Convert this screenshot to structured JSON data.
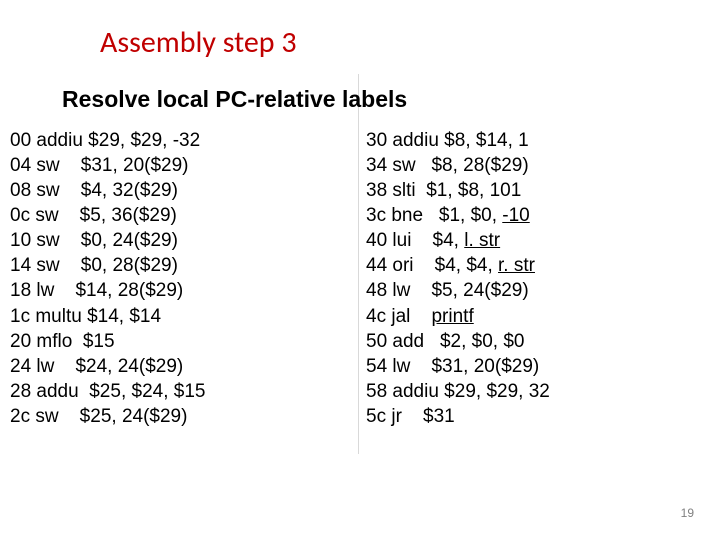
{
  "title": "Assembly step 3",
  "subtitle": "Resolve local PC-relative labels",
  "left_col": [
    {
      "addr": "00",
      "instr": "addiu $29, $29, -32"
    },
    {
      "addr": "04",
      "instr": "sw    $31, 20($29)"
    },
    {
      "addr": "08",
      "instr": "sw    $4, 32($29)"
    },
    {
      "addr": "0c",
      "instr": "sw    $5, 36($29)"
    },
    {
      "addr": "10",
      "instr": "sw    $0, 24($29)"
    },
    {
      "addr": "14",
      "instr": "sw    $0, 28($29)"
    },
    {
      "addr": "18",
      "instr": "lw    $14, 28($29)"
    },
    {
      "addr": "1c",
      "instr": "multu $14, $14"
    },
    {
      "addr": "20",
      "instr": "mflo  $15"
    },
    {
      "addr": "24",
      "instr": "lw    $24, 24($29)"
    },
    {
      "addr": "28",
      "instr": "addu  $25, $24, $15"
    },
    {
      "addr": "2c",
      "instr": "sw    $25, 24($29)"
    }
  ],
  "right_col": [
    {
      "addr": "30",
      "instr": "addiu $8, $14, 1"
    },
    {
      "addr": "34",
      "instr": "sw   $8, 28($29)"
    },
    {
      "addr": "38",
      "instr": "slti  $1, $8, 101"
    },
    {
      "addr": "3c",
      "pre": "bne   $1, $0, ",
      "u": "-10"
    },
    {
      "addr": "40",
      "pre": "lui    $4, ",
      "u": "l. str"
    },
    {
      "addr": "44",
      "pre": "ori    $4, $4, ",
      "u": "r. str"
    },
    {
      "addr": "48",
      "instr": "lw    $5, 24($29)"
    },
    {
      "addr": "4c",
      "pre": "jal    ",
      "u": "printf"
    },
    {
      "addr": "50",
      "instr": "add   $2, $0, $0"
    },
    {
      "addr": "54",
      "instr": "lw    $31, 20($29)"
    },
    {
      "addr": "58",
      "instr": "addiu $29, $29, 32"
    },
    {
      "addr": "5c",
      "instr": "jr    $31"
    }
  ],
  "page_number": "19",
  "colors": {
    "title": "#c00000",
    "text": "#000000",
    "divider": "#d9d9d9",
    "pagenum": "#808080",
    "background": "#ffffff"
  },
  "fontsize": {
    "title": 30,
    "subtitle": 23,
    "body": 19,
    "pagenum": 12
  }
}
